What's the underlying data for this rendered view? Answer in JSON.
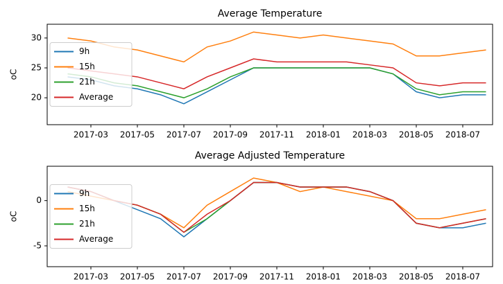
{
  "chart_data": [
    {
      "type": "line",
      "title": "Average Temperature",
      "ylabel": "oC",
      "x": [
        "2017-02",
        "2017-03",
        "2017-04",
        "2017-05",
        "2017-06",
        "2017-07",
        "2017-08",
        "2017-09",
        "2017-10",
        "2017-11",
        "2017-12",
        "2018-01",
        "2018-02",
        "2018-03",
        "2018-04",
        "2018-05",
        "2018-06",
        "2018-07",
        "2018-08"
      ],
      "xticks": [
        "2017-03",
        "2017-05",
        "2017-07",
        "2017-09",
        "2017-11",
        "2018-01",
        "2018-03",
        "2018-05",
        "2018-07"
      ],
      "ylim": [
        15.5,
        32.3
      ],
      "yticks": [
        20,
        25,
        30
      ],
      "legend": "center left",
      "series": [
        {
          "name": "9h",
          "color": "#1f77b4",
          "values": [
            23.5,
            23,
            22,
            21.5,
            20.5,
            19,
            21,
            23,
            25,
            25,
            25,
            25,
            25,
            25,
            24,
            21,
            20,
            20.5,
            20.5
          ]
        },
        {
          "name": "15h",
          "color": "#ff7f0e",
          "values": [
            30,
            29.5,
            28.5,
            28,
            27,
            26,
            28.5,
            29.5,
            31,
            30.5,
            30,
            30.5,
            30,
            29.5,
            29,
            27,
            27,
            27.5,
            28
          ]
        },
        {
          "name": "21h",
          "color": "#2ca02c",
          "values": [
            24,
            23.5,
            22.5,
            22,
            21,
            20,
            21.5,
            23.5,
            25,
            25,
            25,
            25,
            25,
            25,
            24,
            21.5,
            20.5,
            21,
            21
          ]
        },
        {
          "name": "Average",
          "color": "#d62728",
          "values": [
            25,
            24.5,
            24,
            23.5,
            22.5,
            21.5,
            23.5,
            25,
            26.5,
            26,
            26,
            26,
            26,
            25.5,
            25,
            22.5,
            22,
            22.5,
            22.5
          ]
        }
      ]
    },
    {
      "type": "line",
      "title": "Average Adjusted Temperature",
      "ylabel": "oC",
      "x": [
        "2017-02",
        "2017-03",
        "2017-04",
        "2017-05",
        "2017-06",
        "2017-07",
        "2017-08",
        "2017-09",
        "2017-10",
        "2017-11",
        "2017-12",
        "2018-01",
        "2018-02",
        "2018-03",
        "2018-04",
        "2018-05",
        "2018-06",
        "2018-07",
        "2018-08"
      ],
      "xticks": [
        "2017-03",
        "2017-05",
        "2017-07",
        "2017-09",
        "2017-11",
        "2018-01",
        "2018-03",
        "2018-05",
        "2018-07"
      ],
      "ylim": [
        -7.3,
        3.8
      ],
      "yticks": [
        -5,
        0
      ],
      "legend": "center left",
      "series": [
        {
          "name": "9h",
          "color": "#1f77b4",
          "values": [
            1.5,
            1,
            0,
            -1,
            -2,
            -4,
            -2,
            0,
            2,
            2,
            1.5,
            1.5,
            1.5,
            1,
            0,
            -2.5,
            -3,
            -3,
            -2.5
          ]
        },
        {
          "name": "15h",
          "color": "#ff7f0e",
          "values": [
            1,
            0.5,
            0,
            -0.5,
            -1.5,
            -3,
            -0.5,
            1,
            2.5,
            2,
            1,
            1.5,
            1,
            0.5,
            0,
            -2,
            -2,
            -1.5,
            -1
          ]
        },
        {
          "name": "21h",
          "color": "#2ca02c",
          "values": [
            1.5,
            1,
            0,
            -0.5,
            -1.5,
            -3.5,
            -2,
            0,
            2,
            2,
            1.5,
            1.5,
            1.5,
            1,
            0,
            -2.5,
            -3,
            -2.5,
            -2
          ]
        },
        {
          "name": "Average",
          "color": "#d62728",
          "values": [
            1.5,
            1,
            0,
            -0.5,
            -1.5,
            -3.5,
            -1.5,
            0,
            2,
            2,
            1.5,
            1.5,
            1.5,
            1,
            0,
            -2.5,
            -3,
            -2.5,
            -2
          ]
        }
      ]
    }
  ]
}
